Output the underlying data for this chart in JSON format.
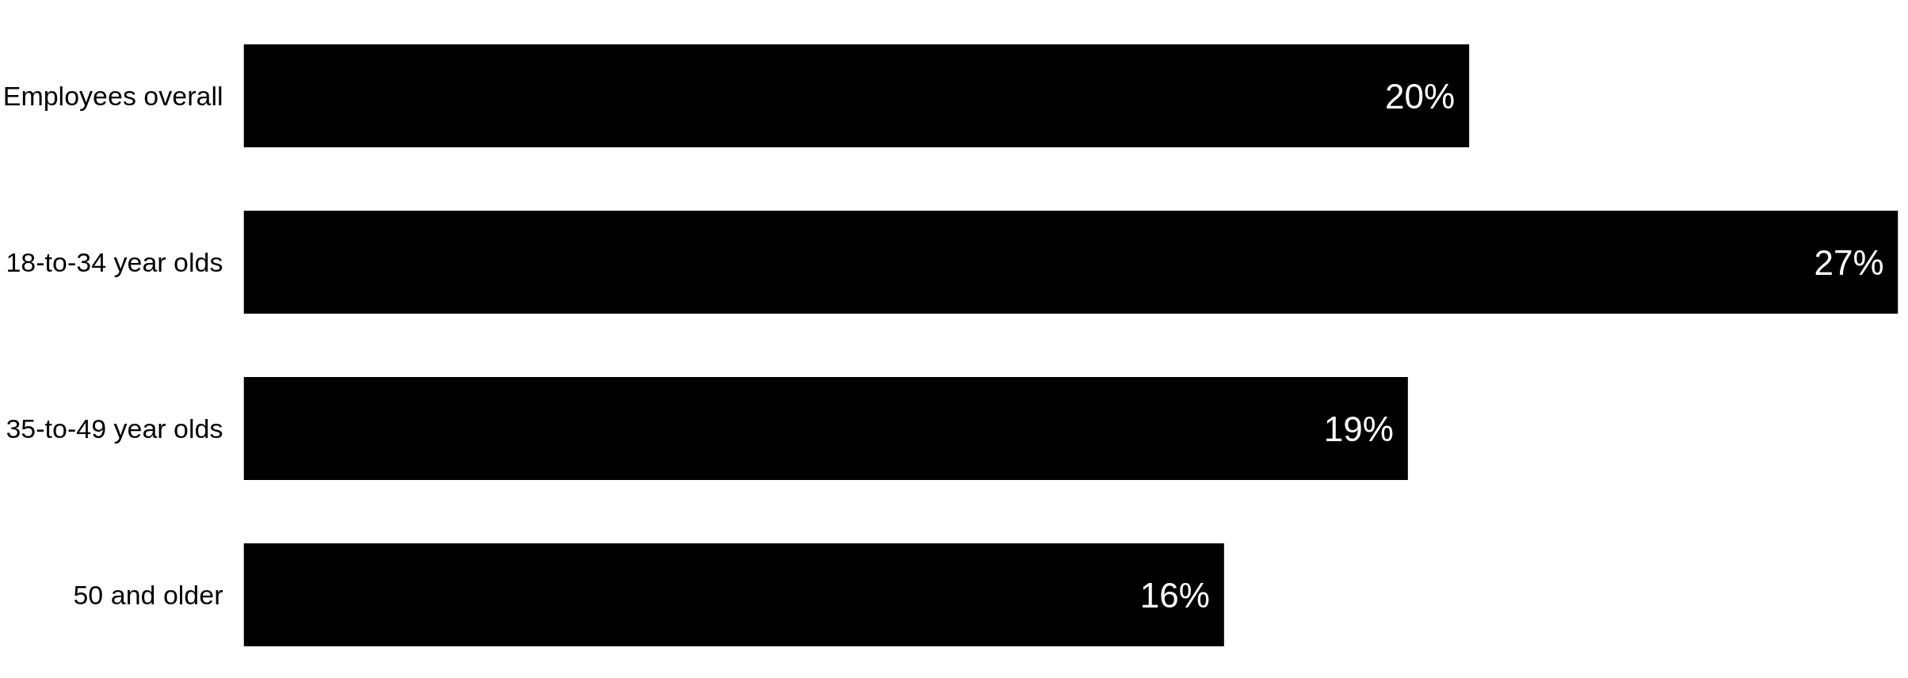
{
  "chart_data": {
    "type": "bar",
    "orientation": "horizontal",
    "categories": [
      "Employees overall",
      "18-to-34 year olds",
      "35-to-49 year olds",
      "50 and older"
    ],
    "values": [
      20,
      27,
      19,
      16
    ],
    "color": "#000000",
    "data_labels": true,
    "value_labels": [
      "20%",
      "27%",
      "19%",
      "16%"
    ],
    "grid": false
  }
}
